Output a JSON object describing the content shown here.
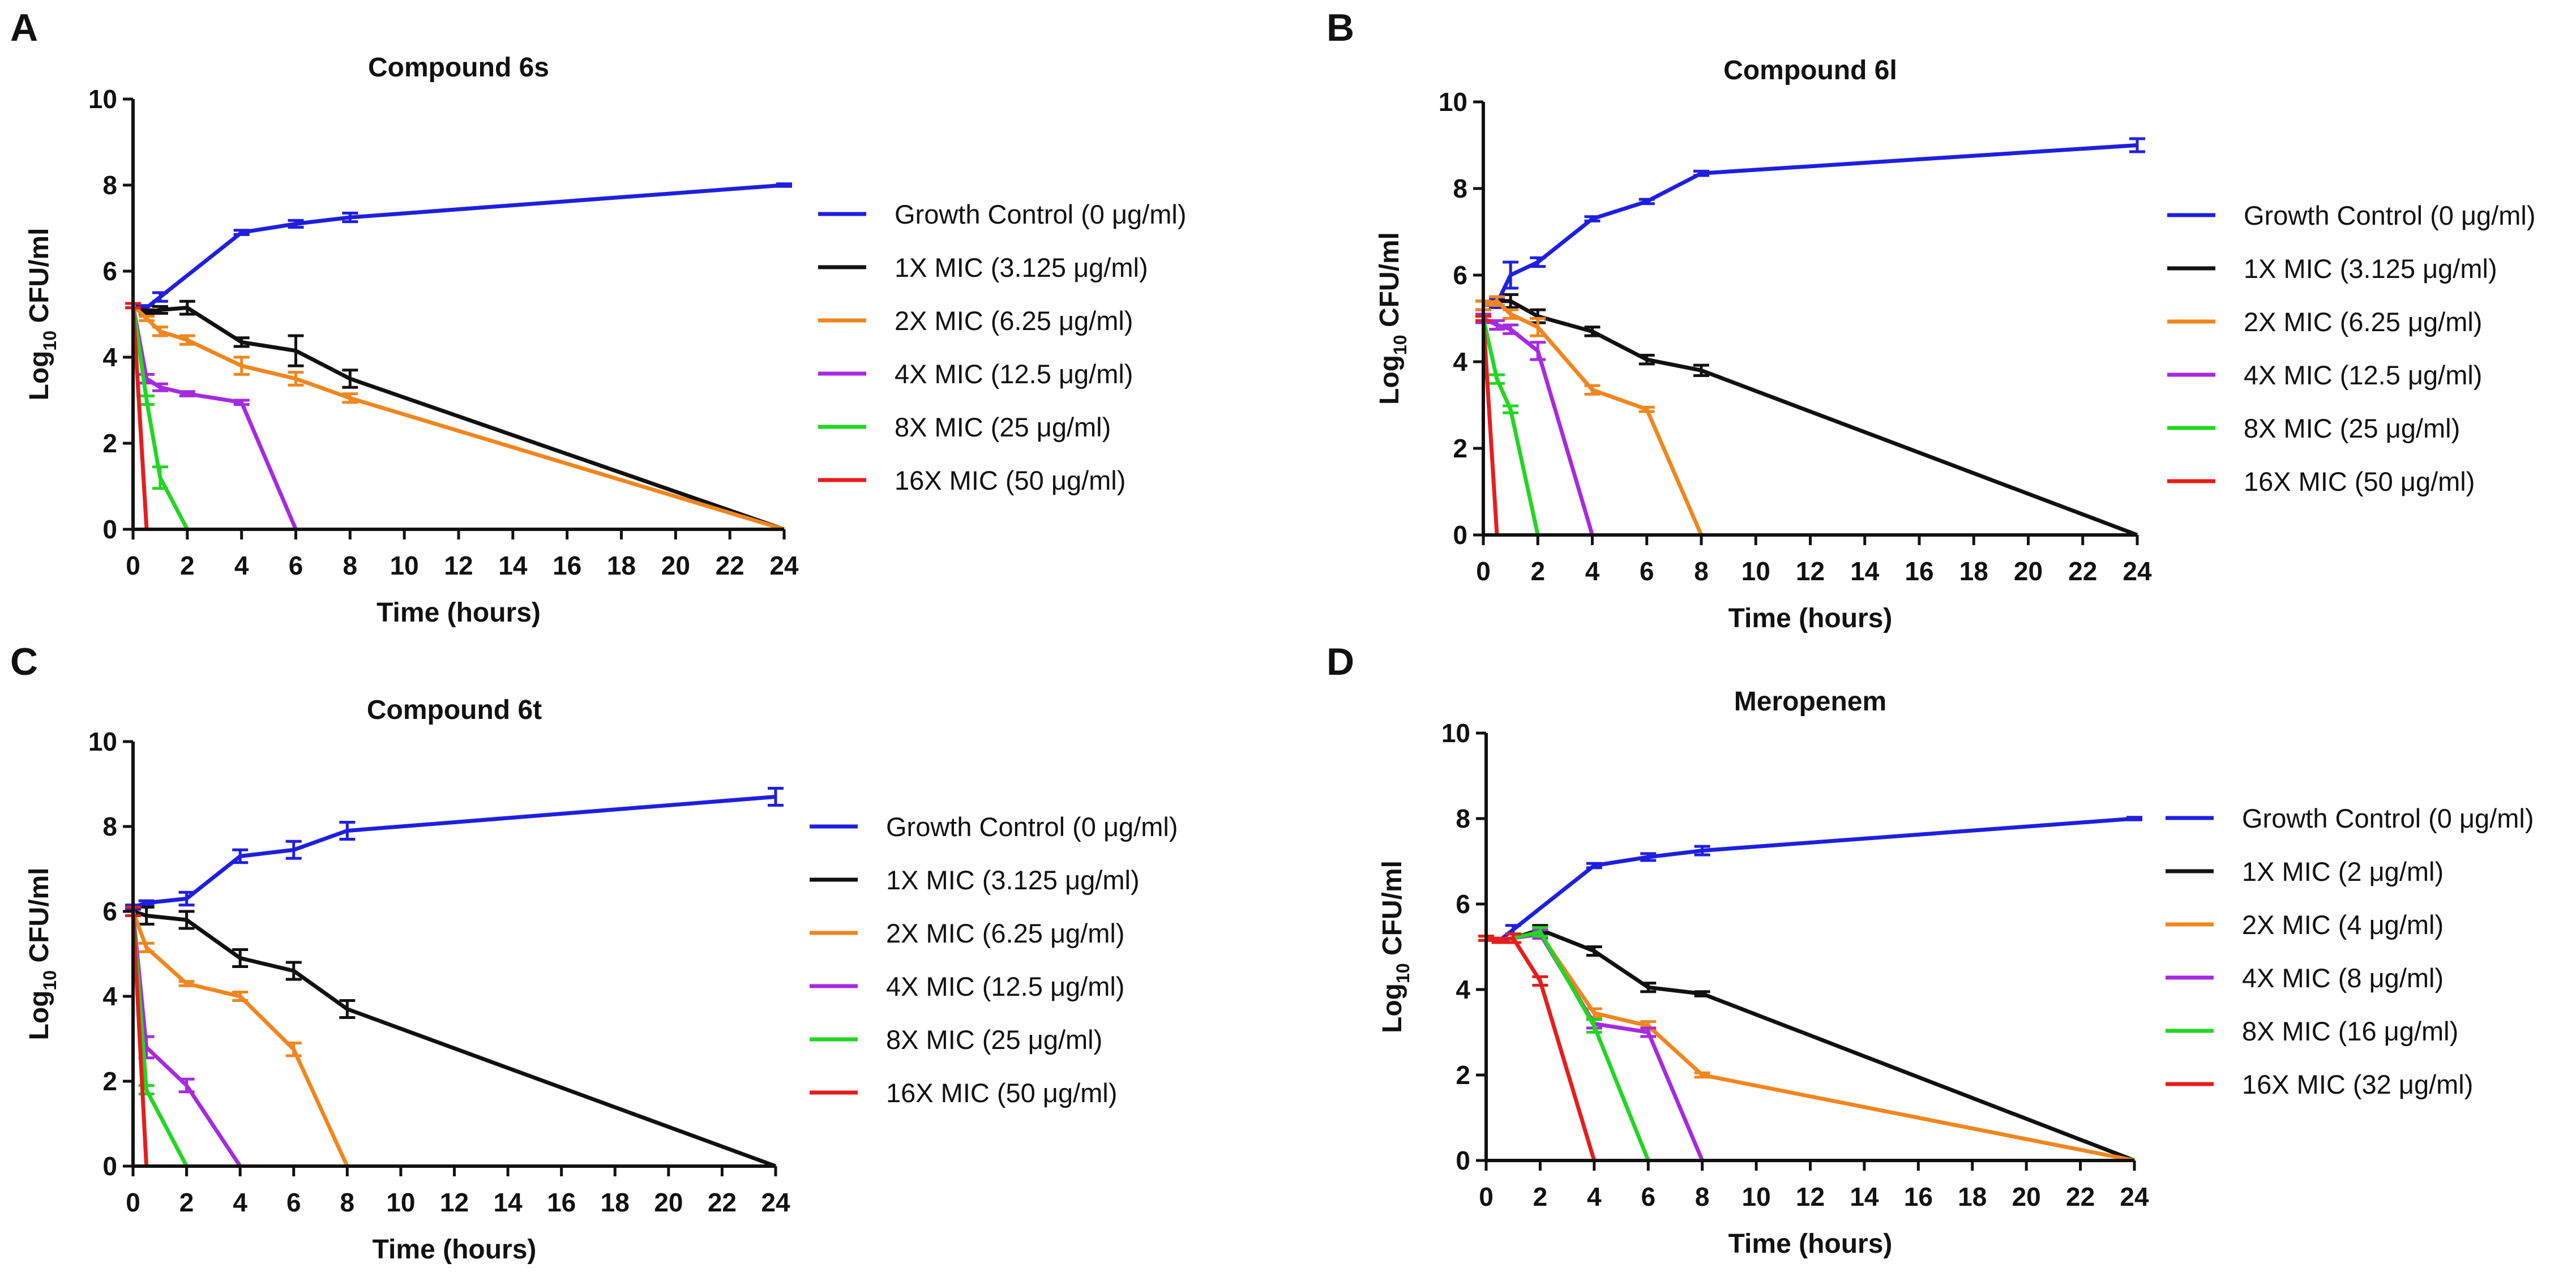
{
  "colors": {
    "growth": "#1f1fe0",
    "x1": "#111111",
    "x2": "#f0861e",
    "x4": "#a62ae0",
    "x8": "#22d622",
    "x16": "#e81c1c"
  },
  "chart_data": [
    {
      "panel": "A",
      "type": "line",
      "title": "Compound 6s",
      "xlabel": "Time (hours)",
      "ylabel_main": "Log",
      "ylabel_sub": "10",
      "ylabel_rest": " CFU/ml",
      "xlim": [
        0,
        24
      ],
      "ylim": [
        0,
        10
      ],
      "xticks": [
        "0",
        "2",
        "4",
        "6",
        "8",
        "10",
        "12",
        "14",
        "16",
        "18",
        "20",
        "22",
        "24"
      ],
      "yticks": [
        "0",
        "2",
        "4",
        "6",
        "8",
        "10"
      ],
      "legend": [
        "Growth Control (0 μg/ml)",
        "1X MIC (3.125 μg/ml)",
        "2X MIC (6.25 μg/ml)",
        "4X MIC (12.5 μg/ml)",
        "8X MIC (25 μg/ml)",
        "16X MIC (50 μg/ml)"
      ],
      "series": [
        {
          "name": "Growth Control (0 μg/ml)",
          "color_key": "growth",
          "x": [
            0,
            0.5,
            1,
            4,
            6,
            8,
            24
          ],
          "y": [
            5.2,
            5.15,
            5.4,
            6.9,
            7.1,
            7.25,
            8.0
          ],
          "err": [
            0.05,
            0.05,
            0.1,
            0.05,
            0.08,
            0.1,
            0.03
          ]
        },
        {
          "name": "1X MIC (3.125 μg/ml)",
          "color_key": "x1",
          "x": [
            0,
            0.5,
            1,
            2,
            4,
            6,
            8,
            24
          ],
          "y": [
            5.2,
            5.05,
            5.1,
            5.15,
            4.35,
            4.15,
            3.5,
            0
          ],
          "err": [
            0.05,
            0.05,
            0.08,
            0.15,
            0.1,
            0.35,
            0.2,
            0
          ]
        },
        {
          "name": "2X MIC (6.25 μg/ml)",
          "color_key": "x2",
          "x": [
            0,
            0.5,
            1,
            2,
            4,
            6,
            8,
            24
          ],
          "y": [
            5.2,
            4.9,
            4.6,
            4.4,
            3.8,
            3.5,
            3.05,
            0
          ],
          "err": [
            0.05,
            0.05,
            0.1,
            0.1,
            0.2,
            0.15,
            0.1,
            0
          ]
        },
        {
          "name": "4X MIC (12.5 μg/ml)",
          "color_key": "x4",
          "x": [
            0,
            0.5,
            1,
            2,
            4,
            6
          ],
          "y": [
            5.2,
            3.5,
            3.3,
            3.15,
            2.95,
            0
          ],
          "err": [
            0.05,
            0.1,
            0.08,
            0.05,
            0.05,
            0
          ]
        },
        {
          "name": "8X MIC (25 μg/ml)",
          "color_key": "x8",
          "x": [
            0,
            0.5,
            1,
            2
          ],
          "y": [
            5.2,
            3.0,
            1.2,
            0
          ],
          "err": [
            0.05,
            0.1,
            0.25,
            0
          ]
        },
        {
          "name": "16X MIC (50 μg/ml)",
          "color_key": "x16",
          "x": [
            0,
            0.5
          ],
          "y": [
            5.2,
            0
          ],
          "err": [
            0.05,
            0
          ]
        }
      ]
    },
    {
      "panel": "B",
      "type": "line",
      "title": "Compound 6l",
      "xlabel": "Time (hours)",
      "ylabel_main": "Log",
      "ylabel_sub": "10",
      "ylabel_rest": " CFU/ml",
      "xlim": [
        0,
        24
      ],
      "ylim": [
        0,
        10
      ],
      "xticks": [
        "0",
        "2",
        "4",
        "6",
        "8",
        "10",
        "12",
        "14",
        "16",
        "18",
        "20",
        "22",
        "24"
      ],
      "yticks": [
        "0",
        "2",
        "4",
        "6",
        "8",
        "10"
      ],
      "legend": [
        "Growth Control (0 μg/ml)",
        "1X MIC (3.125 μg/ml)",
        "2X MIC (6.25 μg/ml)",
        "4X MIC (12.5 μg/ml)",
        "8X MIC (25 μg/ml)",
        "16X MIC (50 μg/ml)"
      ],
      "series": [
        {
          "name": "Growth Control (0 μg/ml)",
          "color_key": "growth",
          "x": [
            0,
            0.5,
            1,
            2,
            4,
            6,
            8,
            24
          ],
          "y": [
            5.3,
            5.35,
            6.0,
            6.3,
            7.3,
            7.7,
            8.35,
            9.0
          ],
          "err": [
            0.1,
            0.1,
            0.3,
            0.1,
            0.05,
            0.05,
            0.05,
            0.15
          ]
        },
        {
          "name": "1X MIC (3.125 μg/ml)",
          "color_key": "x1",
          "x": [
            0,
            0.5,
            1,
            2,
            4,
            6,
            8,
            24
          ],
          "y": [
            5.3,
            5.4,
            5.4,
            5.05,
            4.7,
            4.05,
            3.8,
            0
          ],
          "err": [
            0.1,
            0.1,
            0.15,
            0.15,
            0.1,
            0.1,
            0.12,
            0
          ]
        },
        {
          "name": "2X MIC (6.25 μg/ml)",
          "color_key": "x2",
          "x": [
            0,
            0.5,
            1,
            2,
            4,
            6,
            8
          ],
          "y": [
            5.3,
            5.4,
            5.1,
            4.8,
            3.35,
            2.9,
            0
          ],
          "err": [
            0.1,
            0.1,
            0.1,
            0.2,
            0.1,
            0.05,
            0
          ]
        },
        {
          "name": "4X MIC (12.5 μg/ml)",
          "color_key": "x4",
          "x": [
            0,
            0.5,
            1,
            2,
            4
          ],
          "y": [
            5.0,
            4.85,
            4.75,
            4.25,
            0
          ],
          "err": [
            0.1,
            0.1,
            0.1,
            0.2,
            0
          ]
        },
        {
          "name": "8X MIC (25 μg/ml)",
          "color_key": "x8",
          "x": [
            0,
            0.5,
            1,
            2
          ],
          "y": [
            5.0,
            3.6,
            2.9,
            0
          ],
          "err": [
            0.05,
            0.1,
            0.08,
            0
          ]
        },
        {
          "name": "16X MIC (50 μg/ml)",
          "color_key": "x16",
          "x": [
            0,
            0.5
          ],
          "y": [
            5.0,
            0
          ],
          "err": [
            0.05,
            0
          ]
        }
      ]
    },
    {
      "panel": "C",
      "type": "line",
      "title": "Compound 6t",
      "xlabel": "Time (hours)",
      "ylabel_main": "Log",
      "ylabel_sub": "10",
      "ylabel_rest": " CFU/ml",
      "xlim": [
        0,
        24
      ],
      "ylim": [
        0,
        10
      ],
      "xticks": [
        "0",
        "2",
        "4",
        "6",
        "8",
        "10",
        "12",
        "14",
        "16",
        "18",
        "20",
        "22",
        "24"
      ],
      "yticks": [
        "0",
        "2",
        "4",
        "6",
        "8",
        "10"
      ],
      "legend": [
        "Growth Control (0 μg/ml)",
        "1X MIC (3.125 μg/ml)",
        "2X MIC (6.25 μg/ml)",
        "4X MIC (12.5 μg/ml)",
        "8X MIC (25 μg/ml)",
        "16X MIC (50 μg/ml)"
      ],
      "series": [
        {
          "name": "Growth Control (0 μg/ml)",
          "color_key": "growth",
          "x": [
            0,
            0.5,
            2,
            4,
            6,
            8,
            24
          ],
          "y": [
            6.1,
            6.2,
            6.3,
            7.3,
            7.45,
            7.9,
            8.7
          ],
          "err": [
            0.05,
            0.05,
            0.15,
            0.15,
            0.2,
            0.2,
            0.2
          ]
        },
        {
          "name": "1X MIC (3.125 μg/ml)",
          "color_key": "x1",
          "x": [
            0,
            0.5,
            2,
            4,
            6,
            8,
            24
          ],
          "y": [
            6.0,
            5.9,
            5.8,
            4.9,
            4.6,
            3.7,
            0
          ],
          "err": [
            0.1,
            0.2,
            0.2,
            0.2,
            0.2,
            0.2,
            0
          ]
        },
        {
          "name": "2X MIC (6.25 μg/ml)",
          "color_key": "x2",
          "x": [
            0,
            0.5,
            2,
            4,
            6,
            8
          ],
          "y": [
            6.0,
            5.15,
            4.3,
            4.0,
            2.75,
            0
          ],
          "err": [
            0.1,
            0.1,
            0.05,
            0.1,
            0.15,
            0
          ]
        },
        {
          "name": "4X MIC (12.5 μg/ml)",
          "color_key": "x4",
          "x": [
            0,
            0.5,
            2,
            4
          ],
          "y": [
            6.0,
            2.8,
            1.9,
            0
          ],
          "err": [
            0.1,
            0.25,
            0.15,
            0
          ]
        },
        {
          "name": "8X MIC (25 μg/ml)",
          "color_key": "x8",
          "x": [
            0,
            0.5,
            2
          ],
          "y": [
            6.0,
            1.8,
            0
          ],
          "err": [
            0.1,
            0.1,
            0
          ]
        },
        {
          "name": "16X MIC (50 μg/ml)",
          "color_key": "x16",
          "x": [
            0,
            0.5
          ],
          "y": [
            6.0,
            0
          ],
          "err": [
            0.1,
            0
          ]
        }
      ]
    },
    {
      "panel": "D",
      "type": "line",
      "title": "Meropenem",
      "xlabel": "Time (hours)",
      "ylabel_main": "Log",
      "ylabel_sub": "10",
      "ylabel_rest": " CFU/ml",
      "xlim": [
        0,
        24
      ],
      "ylim": [
        0,
        10
      ],
      "xticks": [
        "0",
        "2",
        "4",
        "6",
        "8",
        "10",
        "12",
        "14",
        "16",
        "18",
        "20",
        "22",
        "24"
      ],
      "yticks": [
        "0",
        "2",
        "4",
        "6",
        "8",
        "10"
      ],
      "legend": [
        "Growth Control (0 μg/ml)",
        "1X MIC (2 μg/ml)",
        "2X MIC (4 μg/ml)",
        "4X MIC (8 μg/ml)",
        "8X MIC (16 μg/ml)",
        "16X MIC (32 μg/ml)"
      ],
      "series": [
        {
          "name": "Growth Control (0 μg/ml)",
          "color_key": "growth",
          "x": [
            0,
            0.5,
            1,
            4,
            6,
            8,
            24
          ],
          "y": [
            5.2,
            5.15,
            5.4,
            6.9,
            7.1,
            7.25,
            8.0
          ],
          "err": [
            0.05,
            0.05,
            0.1,
            0.05,
            0.08,
            0.1,
            0.03
          ]
        },
        {
          "name": "1X MIC (2 μg/ml)",
          "color_key": "x1",
          "x": [
            0,
            0.5,
            1,
            2,
            4,
            6,
            8,
            24
          ],
          "y": [
            5.2,
            5.15,
            5.2,
            5.4,
            4.9,
            4.05,
            3.9,
            0
          ],
          "err": [
            0.05,
            0.05,
            0.1,
            0.1,
            0.1,
            0.1,
            0.05,
            0
          ]
        },
        {
          "name": "2X MIC (4 μg/ml)",
          "color_key": "x2",
          "x": [
            0,
            0.5,
            1,
            2,
            4,
            6,
            8,
            24
          ],
          "y": [
            5.2,
            5.15,
            5.2,
            5.3,
            3.45,
            3.15,
            2.0,
            0
          ],
          "err": [
            0.05,
            0.05,
            0.1,
            0.1,
            0.1,
            0.1,
            0.05,
            0
          ]
        },
        {
          "name": "4X MIC (8 μg/ml)",
          "color_key": "x4",
          "x": [
            0,
            0.5,
            1,
            2,
            4,
            6,
            8
          ],
          "y": [
            5.2,
            5.15,
            5.2,
            5.3,
            3.2,
            3.0,
            0
          ],
          "err": [
            0.05,
            0.05,
            0.1,
            0.1,
            0.1,
            0.1,
            0
          ]
        },
        {
          "name": "8X MIC (16 μg/ml)",
          "color_key": "x8",
          "x": [
            0,
            0.5,
            1,
            2,
            4,
            6
          ],
          "y": [
            5.2,
            5.15,
            5.2,
            5.35,
            3.15,
            0
          ],
          "err": [
            0.05,
            0.05,
            0.1,
            0.1,
            0.15,
            0
          ]
        },
        {
          "name": "16X MIC (32 μg/ml)",
          "color_key": "x16",
          "x": [
            0,
            0.5,
            1,
            2,
            4
          ],
          "y": [
            5.2,
            5.15,
            5.2,
            4.2,
            0
          ],
          "err": [
            0.05,
            0.05,
            0.1,
            0.1,
            0
          ]
        }
      ]
    }
  ]
}
